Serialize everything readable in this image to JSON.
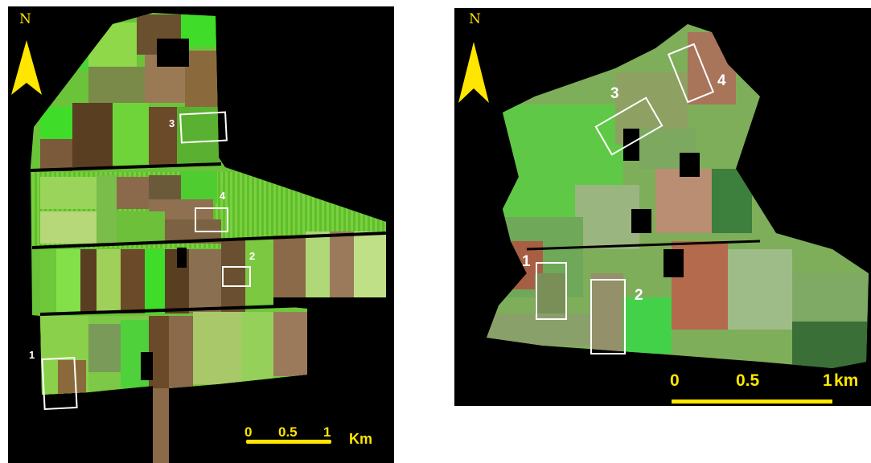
{
  "maps": [
    {
      "north_label": "N",
      "plots": [
        "1",
        "2",
        "3",
        "4"
      ],
      "scale": {
        "ticks": [
          "0",
          "0.5",
          "1"
        ],
        "unit": "Km"
      }
    },
    {
      "north_label": "N",
      "plots": [
        "1",
        "2",
        "3",
        "4"
      ],
      "scale": {
        "ticks": [
          "0",
          "0.5",
          "1"
        ],
        "unit": "km"
      }
    }
  ],
  "colors": {
    "background": "#000000",
    "annotation": "#ffe600",
    "plot_box": "#ffffff"
  }
}
